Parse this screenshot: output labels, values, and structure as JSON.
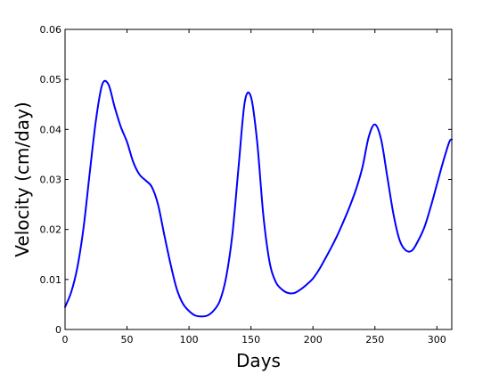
{
  "chart_data": {
    "type": "line",
    "title": "",
    "xlabel": "Days",
    "ylabel": "Velocity (cm/day)",
    "xlim": [
      0,
      312
    ],
    "ylim": [
      0,
      0.06
    ],
    "xticks": [
      0,
      50,
      100,
      150,
      200,
      250,
      300
    ],
    "yticks": [
      0,
      0.01,
      0.02,
      0.03,
      0.04,
      0.05,
      0.06
    ],
    "xtick_labels": [
      "0",
      "50",
      "100",
      "150",
      "200",
      "250",
      "300"
    ],
    "ytick_labels": [
      "0",
      "0.01",
      "0.02",
      "0.03",
      "0.04",
      "0.05",
      "0.06"
    ],
    "grid": false,
    "legend": "none",
    "series": [
      {
        "color": "#0000ff",
        "x": [
          0,
          5,
          10,
          15,
          20,
          25,
          30,
          35,
          40,
          45,
          50,
          55,
          60,
          65,
          70,
          75,
          80,
          85,
          90,
          95,
          100,
          105,
          110,
          115,
          120,
          125,
          130,
          135,
          140,
          145,
          150,
          155,
          160,
          165,
          170,
          175,
          180,
          185,
          190,
          195,
          200,
          205,
          210,
          215,
          220,
          225,
          230,
          235,
          240,
          245,
          250,
          255,
          260,
          265,
          270,
          275,
          280,
          285,
          290,
          295,
          300,
          305,
          310,
          312
        ],
        "y": [
          0.0045,
          0.0075,
          0.0125,
          0.0205,
          0.0315,
          0.042,
          0.049,
          0.049,
          0.0445,
          0.0405,
          0.0375,
          0.0335,
          0.031,
          0.0298,
          0.0285,
          0.025,
          0.019,
          0.0132,
          0.0082,
          0.0052,
          0.0037,
          0.0028,
          0.0026,
          0.0028,
          0.0038,
          0.0058,
          0.0105,
          0.019,
          0.0325,
          0.0455,
          0.0465,
          0.0375,
          0.0228,
          0.0135,
          0.0095,
          0.008,
          0.0073,
          0.0073,
          0.008,
          0.009,
          0.0102,
          0.012,
          0.0142,
          0.0165,
          0.019,
          0.0218,
          0.0248,
          0.0282,
          0.0325,
          0.0385,
          0.041,
          0.038,
          0.0305,
          0.023,
          0.0178,
          0.0158,
          0.0158,
          0.0178,
          0.0205,
          0.0245,
          0.029,
          0.0335,
          0.0375,
          0.038
        ]
      }
    ]
  }
}
